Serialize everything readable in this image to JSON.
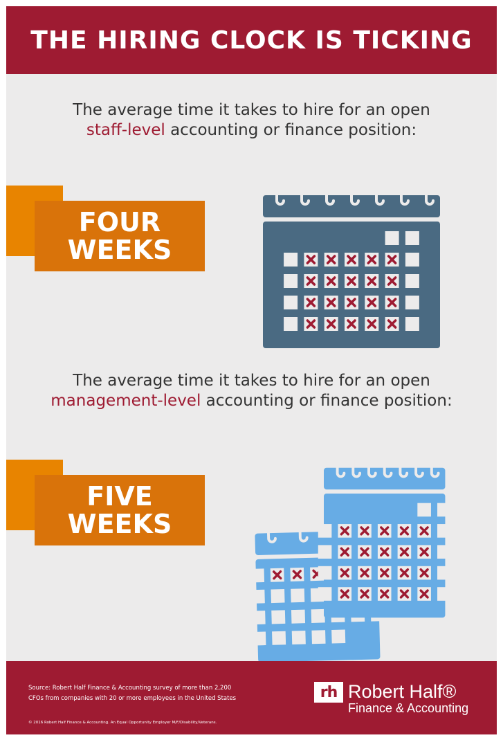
{
  "header": {
    "title": "THE HIRING CLOCK IS TICKING"
  },
  "staff": {
    "line1": "The average time it takes to hire for an open",
    "highlight": "staff-level",
    "line2_rest": " accounting or finance position:",
    "ribbon_line1": "FOUR",
    "ribbon_line2": "WEEKS"
  },
  "management": {
    "line1": "The average time it takes to hire for an open",
    "highlight": "management-level",
    "line2_rest": " accounting or finance position:",
    "ribbon_line1": "FIVE",
    "ribbon_line2": "WEEKS"
  },
  "calendars": {
    "staff_calendar": {
      "color": "#4a6a82",
      "rows": [
        "-----oo",
        "oxxxxxo",
        "oxxxxxo",
        "oxxxxxo",
        "oxxxxxo"
      ]
    },
    "management_back": {
      "color": "#67ace5",
      "rows": [
        "oxxxxxo",
        "ooooooo",
        "ooooooo",
        "ooooo"
      ]
    },
    "management_front": {
      "color": "#67ace5",
      "rows": [
        "-----oo",
        "oxxxxxo",
        "oxxxxxo",
        "oxxxxxo",
        "oxxxxxo"
      ]
    },
    "mark_color": "#9e1b32"
  },
  "footer": {
    "source_line1": "Source: Robert Half Finance & Accounting survey of more than 2,200",
    "source_line2": "CFOs from companies with 20 or more employees in the United States",
    "copyright": "© 2016 Robert Half Finance & Accounting. An Equal Opportunity Employer M/F/Disability/Veterans.",
    "logo_mark": "rh",
    "logo_name": "Robert Half®",
    "logo_sub": "Finance & Accounting"
  }
}
